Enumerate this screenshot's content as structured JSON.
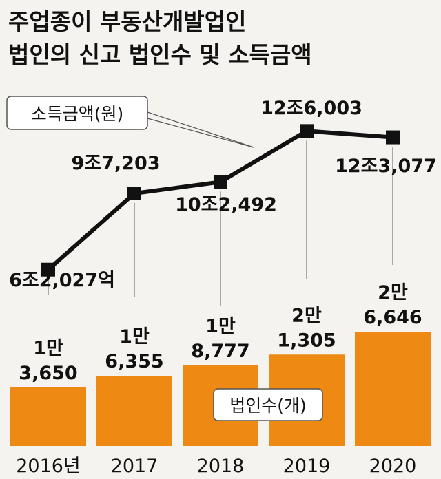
{
  "title": {
    "line1": "주업종이 부동산개발업인",
    "line2": "법인의 신고 법인수 및 소득금액"
  },
  "chart_data": {
    "type": "bar+line",
    "categories": [
      "2016년",
      "2017",
      "2018",
      "2019",
      "2020"
    ],
    "bar_series": {
      "name": "법인수(개)",
      "values": [
        13650,
        16355,
        18777,
        21305,
        26646
      ],
      "labels": [
        [
          "1만",
          "3,650"
        ],
        [
          "1만",
          "6,355"
        ],
        [
          "1만",
          "8,777"
        ],
        [
          "2만",
          "1,305"
        ],
        [
          "2만",
          "6,646"
        ]
      ],
      "color": "#ee8a14"
    },
    "line_series": {
      "name": "소득금액(원)",
      "values": [
        62027,
        97203,
        102492,
        126003,
        123077
      ],
      "value_unit": "억",
      "labels": [
        "6조2,027억",
        "9조7,203",
        "10조2,492",
        "12조6,003",
        "12조3,077"
      ],
      "color": "#111111"
    },
    "legend_line": "소득금액(원)",
    "legend_bar": "법인수(개)"
  }
}
